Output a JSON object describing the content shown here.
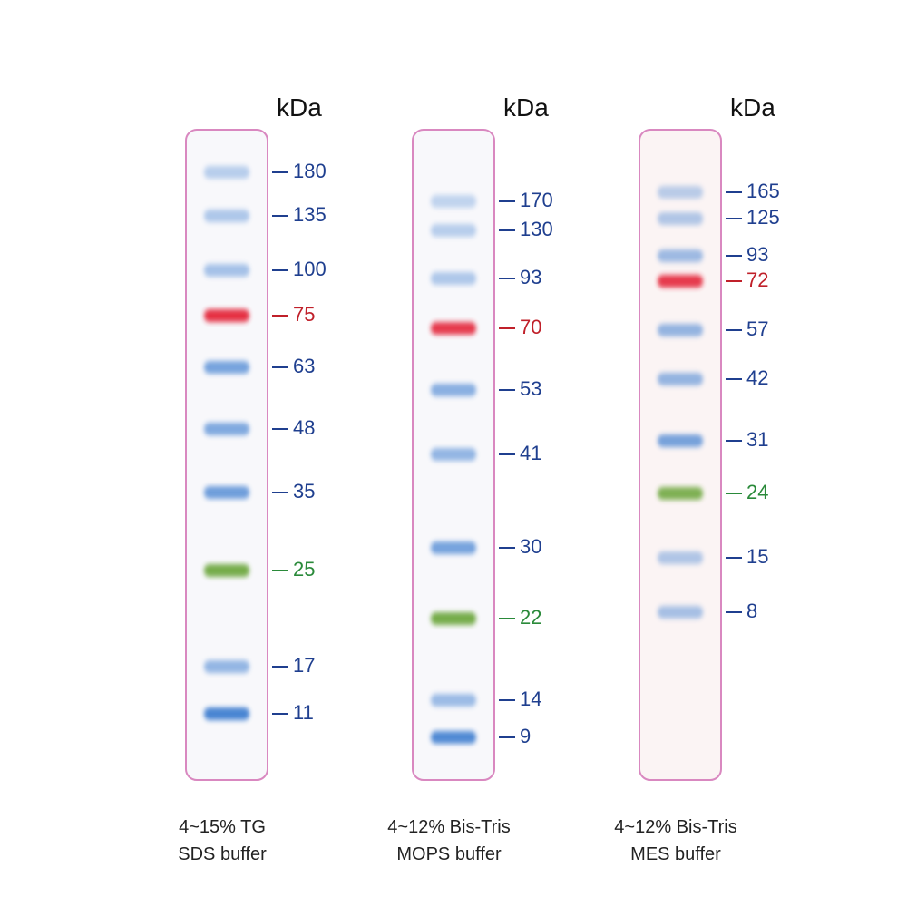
{
  "lanes": [
    {
      "unit": "kDa",
      "caption": [
        "4~15% TG",
        "SDS buffer"
      ],
      "bands": [
        {
          "label": "180",
          "color": "blue"
        },
        {
          "label": "135",
          "color": "blue"
        },
        {
          "label": "100",
          "color": "blue"
        },
        {
          "label": "75",
          "color": "red"
        },
        {
          "label": "63",
          "color": "blue"
        },
        {
          "label": "48",
          "color": "blue"
        },
        {
          "label": "35",
          "color": "blue"
        },
        {
          "label": "25",
          "color": "green"
        },
        {
          "label": "17",
          "color": "blue"
        },
        {
          "label": "11",
          "color": "blue"
        }
      ]
    },
    {
      "unit": "kDa",
      "caption": [
        "4~12% Bis-Tris",
        "MOPS buffer"
      ],
      "bands": [
        {
          "label": "170",
          "color": "blue"
        },
        {
          "label": "130",
          "color": "blue"
        },
        {
          "label": "93",
          "color": "blue"
        },
        {
          "label": "70",
          "color": "red"
        },
        {
          "label": "53",
          "color": "blue"
        },
        {
          "label": "41",
          "color": "blue"
        },
        {
          "label": "30",
          "color": "blue"
        },
        {
          "label": "22",
          "color": "green"
        },
        {
          "label": "14",
          "color": "blue"
        },
        {
          "label": "9",
          "color": "blue"
        }
      ]
    },
    {
      "unit": "kDa",
      "caption": [
        "4~12% Bis-Tris",
        "MES buffer"
      ],
      "bands": [
        {
          "label": "165",
          "color": "blue"
        },
        {
          "label": "125",
          "color": "blue"
        },
        {
          "label": "93",
          "color": "blue"
        },
        {
          "label": "72",
          "color": "red"
        },
        {
          "label": "57",
          "color": "blue"
        },
        {
          "label": "42",
          "color": "blue"
        },
        {
          "label": "31",
          "color": "blue"
        },
        {
          "label": "24",
          "color": "green"
        },
        {
          "label": "15",
          "color": "blue"
        },
        {
          "label": "8",
          "color": "blue"
        }
      ]
    }
  ]
}
